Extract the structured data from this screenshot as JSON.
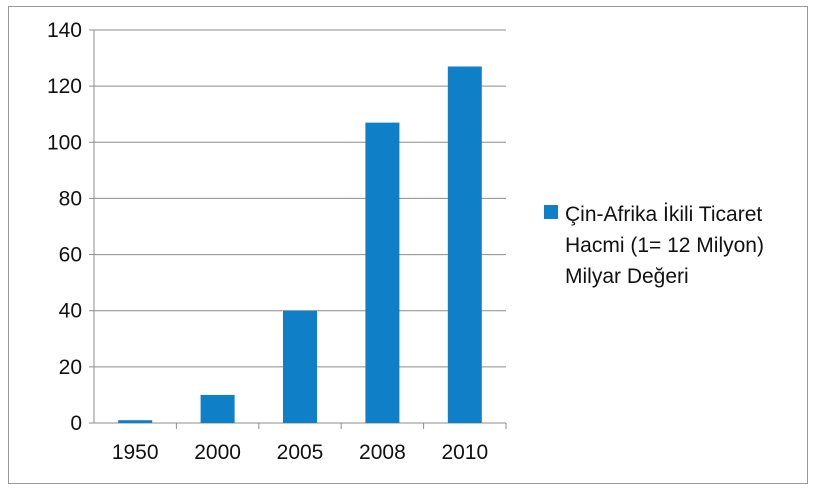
{
  "chart_data": {
    "type": "bar",
    "categories": [
      "1950",
      "2000",
      "2005",
      "2008",
      "2010"
    ],
    "series": [
      {
        "name": "Çin-Afrika İkili Ticaret Hacmi (1= 12 Milyon) Milyar Değeri",
        "values": [
          1,
          10,
          40,
          107,
          127
        ],
        "color": "#0f7fc7"
      }
    ],
    "legend_lines": [
      "Çin-Afrika İkili Ticaret",
      "Hacmi (1= 12 Milyon)",
      "Milyar Değeri"
    ],
    "yticks": [
      0,
      20,
      40,
      60,
      80,
      100,
      120,
      140
    ],
    "ylim": [
      0,
      140
    ],
    "grid": true,
    "legend_position": "right",
    "title": "",
    "xlabel": "",
    "ylabel": ""
  }
}
